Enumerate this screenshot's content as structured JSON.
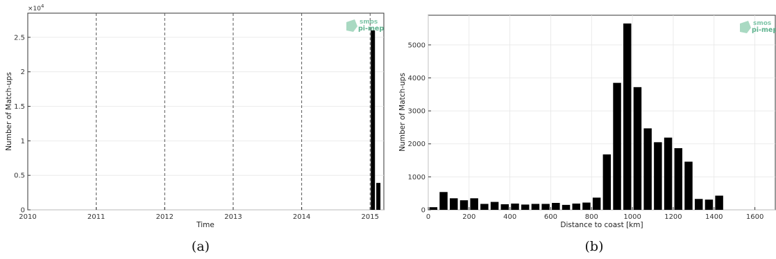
{
  "chart_data": [
    {
      "type": "bar",
      "panel_label": "(a)",
      "xlabel": "Time",
      "ylabel": "Number of Match-ups",
      "y_multiplier_label": "×10",
      "y_multiplier_exp": "4",
      "xlim": [
        2010,
        2015.2
      ],
      "ylim": [
        0,
        28500
      ],
      "xticks": [
        2010,
        2011,
        2012,
        2013,
        2014,
        2015
      ],
      "xtick_labels": [
        "2010",
        "2011",
        "2012",
        "2013",
        "2014",
        "2015"
      ],
      "yticks": [
        0,
        5000,
        10000,
        15000,
        20000,
        25000
      ],
      "ytick_labels": [
        "0",
        "0.5",
        "1",
        "1.5",
        "2",
        "2.5"
      ],
      "vlines": [
        2011,
        2012,
        2013,
        2014,
        2015
      ],
      "bars": [
        {
          "x": 2015.04,
          "value": 26000
        },
        {
          "x": 2015.12,
          "value": 3900
        }
      ],
      "grid": true,
      "logo": {
        "top": "smos",
        "bottom": "pi-mep"
      }
    },
    {
      "type": "bar",
      "panel_label": "(b)",
      "xlabel": "Distance to coast [km]",
      "ylabel": "Number of Match-ups",
      "xlim": [
        0,
        1700
      ],
      "ylim": [
        0,
        5900
      ],
      "xticks": [
        0,
        200,
        400,
        600,
        800,
        1000,
        1200,
        1400,
        1600
      ],
      "yticks": [
        0,
        1000,
        2000,
        3000,
        4000,
        5000
      ],
      "bin_width": 50,
      "x": [
        25,
        75,
        125,
        175,
        225,
        275,
        325,
        375,
        425,
        475,
        525,
        575,
        625,
        675,
        725,
        775,
        825,
        875,
        925,
        975,
        1025,
        1075,
        1125,
        1175,
        1225,
        1275,
        1325,
        1375,
        1425
      ],
      "values": [
        80,
        540,
        350,
        290,
        350,
        180,
        240,
        170,
        190,
        160,
        180,
        180,
        210,
        150,
        190,
        220,
        370,
        1680,
        3850,
        5650,
        3720,
        2470,
        2050,
        2190,
        1870,
        1460,
        330,
        310,
        430
      ],
      "grid": true,
      "logo": {
        "top": "smos",
        "bottom": "pi-mep"
      }
    }
  ]
}
